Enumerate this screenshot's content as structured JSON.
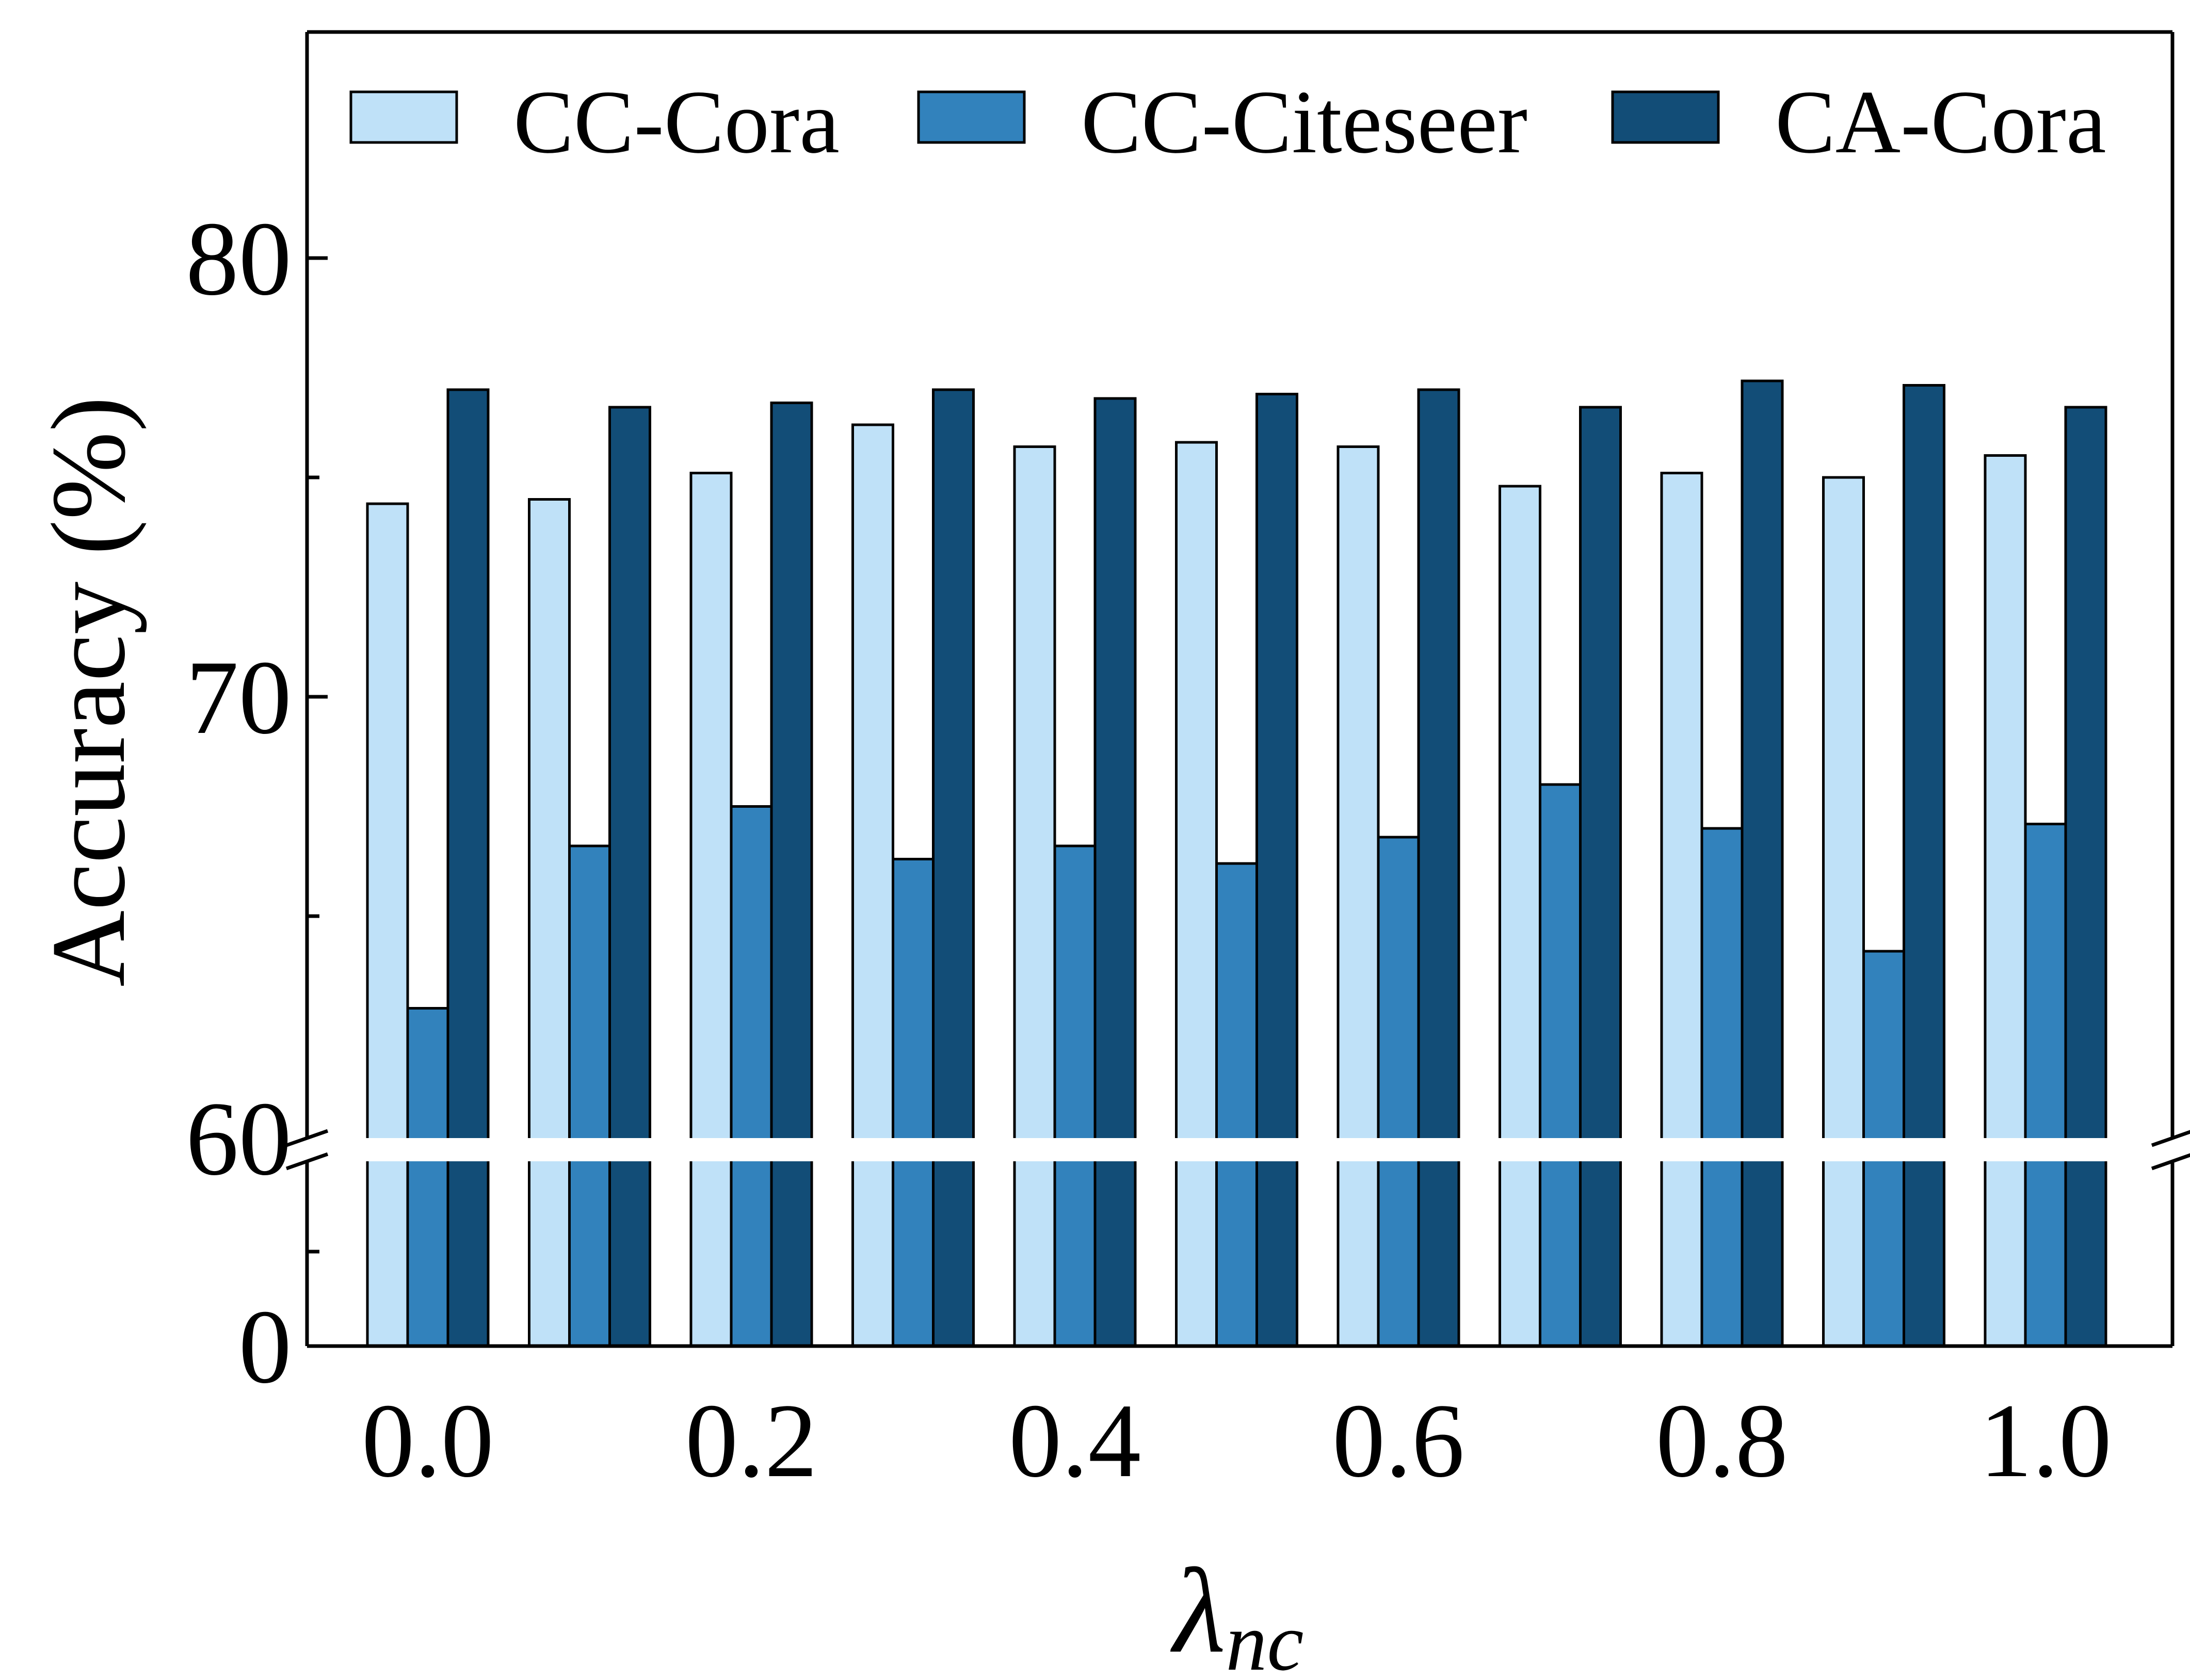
{
  "chart_data": {
    "type": "bar",
    "title": "",
    "xlabel": "λnc",
    "xlabel_main": "λ",
    "xlabel_sub": "nc",
    "ylabel": "Accuracy (%)",
    "ylim": [
      60,
      85
    ],
    "y_break": {
      "lower_visible_tick": 0,
      "upper_start": 60
    },
    "categories": [
      "0.0",
      "0.1",
      "0.2",
      "0.3",
      "0.4",
      "0.5",
      "0.6",
      "0.7",
      "0.8",
      "0.9",
      "1.0"
    ],
    "x_tick_labels": [
      "0.0",
      "0.2",
      "0.4",
      "0.6",
      "0.8",
      "1.0"
    ],
    "y_tick_labels": [
      "0",
      "60",
      "70",
      "80"
    ],
    "legend_position": "top",
    "series": [
      {
        "name": "CC-Cora",
        "color": "#bfe1f8",
        "values": [
          74.4,
          74.5,
          75.1,
          76.2,
          75.7,
          75.8,
          75.7,
          74.8,
          75.1,
          75.0,
          75.5
        ]
      },
      {
        "name": "CC-Citeseer",
        "color": "#3282bc",
        "values": [
          62.9,
          66.6,
          67.5,
          66.3,
          66.6,
          66.2,
          66.8,
          68.0,
          67.0,
          64.2,
          67.1
        ]
      },
      {
        "name": "CA-Cora",
        "color": "#124d77",
        "values": [
          77.0,
          76.6,
          76.7,
          77.0,
          76.8,
          76.9,
          77.0,
          76.6,
          77.2,
          77.1,
          76.6
        ]
      }
    ]
  }
}
